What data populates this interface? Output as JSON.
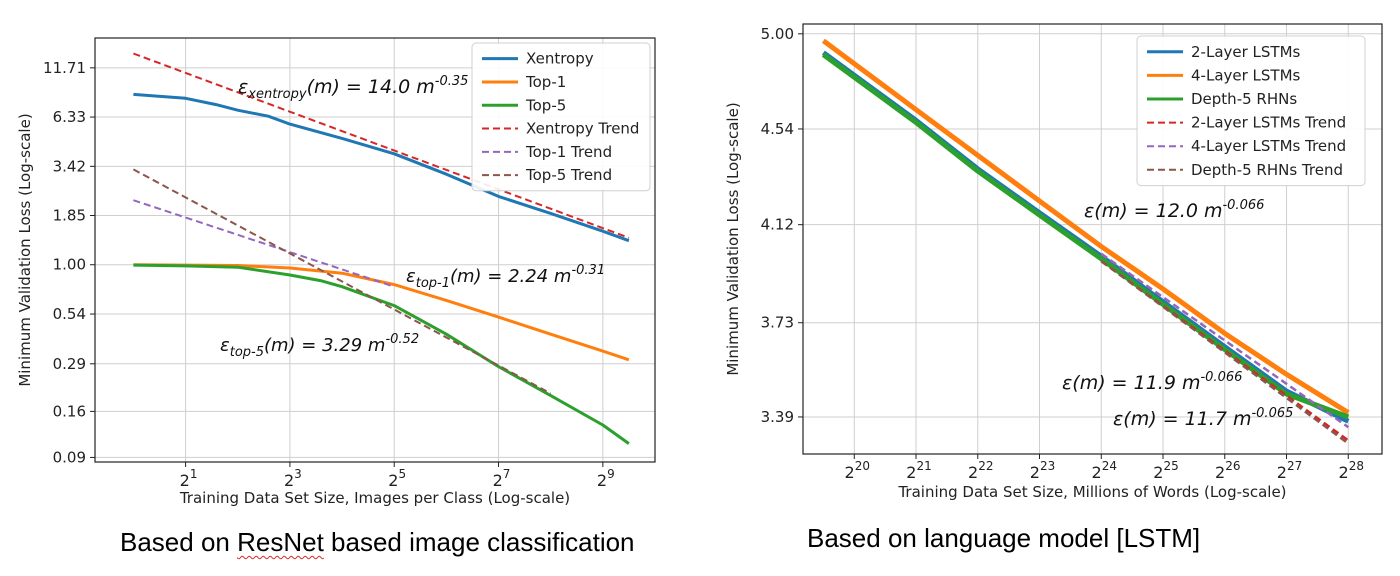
{
  "chart_data": [
    {
      "type": "line",
      "xlabel": "Training Data Set Size, Images per Class (Log-scale)",
      "ylabel": "Minimum Validation Loss (Log-scale)",
      "x_scale": "log2",
      "y_scale": "log",
      "x_ticks": [
        {
          "value": 2,
          "base": "2",
          "exp": "1"
        },
        {
          "value": 8,
          "base": "2",
          "exp": "3"
        },
        {
          "value": 32,
          "base": "2",
          "exp": "5"
        },
        {
          "value": 128,
          "base": "2",
          "exp": "7"
        },
        {
          "value": 512,
          "base": "2",
          "exp": "9"
        }
      ],
      "y_ticks": [
        {
          "value": 0.09,
          "label": "0.09"
        },
        {
          "value": 0.16,
          "label": "0.16"
        },
        {
          "value": 0.29,
          "label": "0.29"
        },
        {
          "value": 0.54,
          "label": "0.54"
        },
        {
          "value": 1.0,
          "label": "1.00"
        },
        {
          "value": 1.85,
          "label": "1.85"
        },
        {
          "value": 3.42,
          "label": "3.42"
        },
        {
          "value": 6.33,
          "label": "6.33"
        },
        {
          "value": 11.71,
          "label": "11.71"
        }
      ],
      "xlim": [
        0.6,
        1024
      ],
      "ylim": [
        0.085,
        17.0
      ],
      "grid": true,
      "legend_position": "top-right",
      "series": [
        {
          "name": "Xentropy",
          "color": "#1f77b4",
          "style": "solid",
          "x": [
            1,
            2,
            3,
            4,
            6,
            8,
            16,
            32,
            64,
            128,
            256,
            512,
            724
          ],
          "y": [
            8.4,
            8.0,
            7.4,
            6.9,
            6.4,
            5.8,
            4.85,
            4.0,
            3.1,
            2.35,
            1.9,
            1.52,
            1.35
          ]
        },
        {
          "name": "Top-1",
          "color": "#ff7f0e",
          "style": "solid",
          "x": [
            1,
            2,
            4,
            8,
            16,
            32,
            64,
            128,
            256,
            512,
            724
          ],
          "y": [
            1.0,
            0.995,
            0.99,
            0.96,
            0.9,
            0.78,
            0.64,
            0.52,
            0.42,
            0.34,
            0.305
          ]
        },
        {
          "name": "Top-5",
          "color": "#2ca02c",
          "style": "solid",
          "x": [
            1,
            2,
            4,
            8,
            12,
            16,
            32,
            64,
            128,
            256,
            512,
            724
          ],
          "y": [
            0.995,
            0.985,
            0.97,
            0.88,
            0.82,
            0.76,
            0.6,
            0.42,
            0.28,
            0.195,
            0.135,
            0.107
          ]
        },
        {
          "name": "Xentropy Trend",
          "color": "#d62728",
          "style": "dashed",
          "x": [
            1,
            724
          ],
          "y": [
            14.0,
            1.4
          ]
        },
        {
          "name": "Top-1 Trend",
          "color": "#9467bd",
          "style": "dashed",
          "x": [
            1,
            32
          ],
          "y": [
            2.24,
            0.76
          ]
        },
        {
          "name": "Top-5 Trend",
          "color": "#8c564b",
          "style": "dashed",
          "x": [
            1,
            256
          ],
          "y": [
            3.29,
            0.2
          ]
        }
      ],
      "annotations": [
        {
          "sym": "ε",
          "sub": "xentropy",
          "main": "(m) = 14.0 m",
          "sup": "-0.35"
        },
        {
          "sym": "ε",
          "sub": "top-1",
          "main": "(m) = 2.24 m",
          "sup": "-0.31"
        },
        {
          "sym": "ε",
          "sub": "top-5",
          "main": "(m) = 3.29 m",
          "sup": "-0.52"
        }
      ]
    },
    {
      "type": "line",
      "xlabel": "Training Data Set Size, Millions of Words (Log-scale)",
      "ylabel": "Minimum Validation Loss (Log-scale)",
      "x_scale": "log2",
      "y_scale": "log",
      "x_ticks": [
        {
          "value": 1048576,
          "base": "2",
          "exp": "20"
        },
        {
          "value": 2097152,
          "base": "2",
          "exp": "21"
        },
        {
          "value": 4194304,
          "base": "2",
          "exp": "22"
        },
        {
          "value": 8388608,
          "base": "2",
          "exp": "23"
        },
        {
          "value": 16777216,
          "base": "2",
          "exp": "24"
        },
        {
          "value": 33554432,
          "base": "2",
          "exp": "25"
        },
        {
          "value": 67108864,
          "base": "2",
          "exp": "26"
        },
        {
          "value": 134217728,
          "base": "2",
          "exp": "27"
        },
        {
          "value": 268435456,
          "base": "2",
          "exp": "28"
        }
      ],
      "y_ticks": [
        {
          "value": 3.39,
          "label": "3.39"
        },
        {
          "value": 3.73,
          "label": "3.73"
        },
        {
          "value": 4.12,
          "label": "4.12"
        },
        {
          "value": 4.54,
          "label": "4.54"
        },
        {
          "value": 5.0,
          "label": "5.00"
        }
      ],
      "xlim": [
        589824,
        392000000
      ],
      "ylim": [
        3.265,
        5.05
      ],
      "grid": true,
      "legend_position": "top-right",
      "series": [
        {
          "name": "2-Layer LSTMs",
          "color": "#1f77b4",
          "style": "solid",
          "width": 5,
          "x": [
            741455,
            2097152,
            4194304,
            8388608,
            16777216,
            33554432,
            67108864,
            134217728,
            268435456
          ],
          "y": [
            4.905,
            4.58,
            4.36,
            4.17,
            3.99,
            3.81,
            3.64,
            3.48,
            3.375
          ]
        },
        {
          "name": "4-Layer LSTMs",
          "color": "#ff7f0e",
          "style": "solid",
          "width": 5,
          "x": [
            741455,
            2097152,
            4194304,
            8388608,
            16777216,
            33554432,
            67108864,
            134217728,
            268435456
          ],
          "y": [
            4.965,
            4.63,
            4.42,
            4.22,
            4.03,
            3.86,
            3.69,
            3.54,
            3.405
          ]
        },
        {
          "name": "Depth-5 RHNs",
          "color": "#2ca02c",
          "style": "solid",
          "width": 5,
          "x": [
            741455,
            2097152,
            4194304,
            8388608,
            16777216,
            33554432,
            67108864,
            134217728,
            268435456
          ],
          "y": [
            4.895,
            4.57,
            4.35,
            4.16,
            3.98,
            3.8,
            3.63,
            3.47,
            3.39
          ]
        },
        {
          "name": "2-Layer LSTMs Trend",
          "color": "#d62728",
          "style": "dashed",
          "width": 2.5,
          "x": [
            16777216,
            268435456
          ],
          "y": [
            3.97,
            3.31
          ]
        },
        {
          "name": "4-Layer LSTMs Trend",
          "color": "#9467bd",
          "style": "dashed",
          "width": 2.5,
          "x": [
            16777216,
            268435456
          ],
          "y": [
            4.0,
            3.355
          ]
        },
        {
          "name": "Depth-5 RHNs Trend",
          "color": "#8c564b",
          "style": "dashed",
          "width": 2.5,
          "x": [
            16777216,
            268435456
          ],
          "y": [
            3.97,
            3.3
          ]
        }
      ],
      "annotations": [
        {
          "sym": "ε",
          "sub": "",
          "main": "(m) = 12.0 m",
          "sup": "-0.066"
        },
        {
          "sym": "ε",
          "sub": "",
          "main": "(m) = 11.9 m",
          "sup": "-0.066"
        },
        {
          "sym": "ε",
          "sub": "",
          "main": "(m) = 11.7 m",
          "sup": "-0.065"
        }
      ]
    }
  ],
  "captions": {
    "left_prefix": "Based on ",
    "left_misspelled": "ResNet",
    "left_suffix": " based image classification",
    "right": "Based on language model [LSTM]"
  }
}
